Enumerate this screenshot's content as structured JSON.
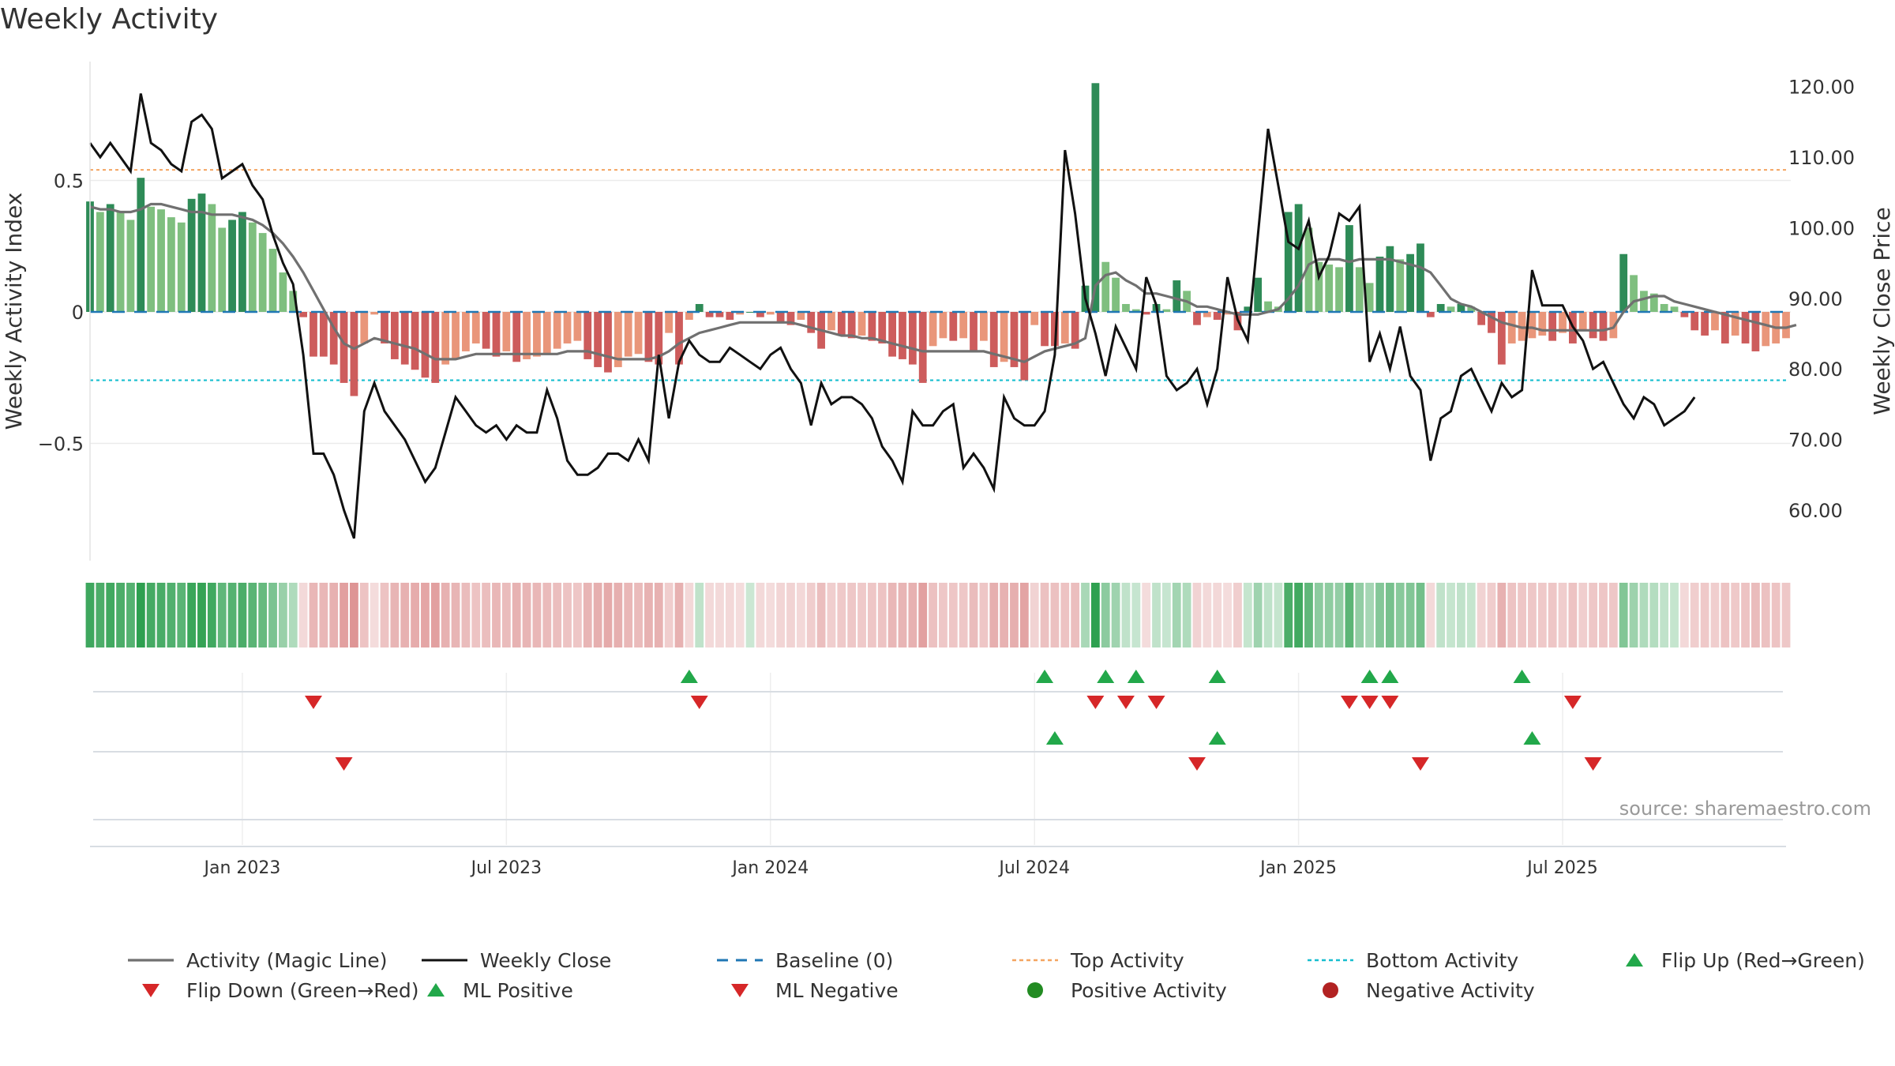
{
  "title": "Weekly Activity",
  "source": "source: sharemaestro.com",
  "colors": {
    "pos_dark": "#2e8b57",
    "pos_light": "#7fbf7f",
    "neg_dark": "#cd5c5c",
    "neg_light": "#e9967a",
    "magic": "#707070",
    "close": "#111111",
    "baseline": "#1f77b4",
    "top": "#f4a460",
    "bottom": "#17becf",
    "flip_up": "#22a84a",
    "flip_down": "#d62728",
    "pos_activity": "#228b22",
    "neg_activity": "#b22222"
  },
  "chart_data": {
    "type": "bar+line",
    "title": "Weekly Activity",
    "ylabel_left": "Weekly Activity Index",
    "ylabel_right": "Weekly Close Price",
    "ylim_left": [
      -0.95,
      0.95
    ],
    "ylim_right": [
      50,
      124
    ],
    "left_ticks": [
      0.5,
      0,
      -0.5
    ],
    "left_tick_labels": [
      "0.5",
      "0",
      "−0.5"
    ],
    "right_ticks": [
      60,
      70,
      80,
      90,
      100,
      110,
      120
    ],
    "right_tick_labels": [
      "60.00",
      "70.00",
      "80.00",
      "90.00",
      "100.00",
      "110.00",
      "120.00"
    ],
    "x_ticks": [
      "Jan 2023",
      "Jul 2023",
      "Jan 2024",
      "Jul 2024",
      "Jan 2025",
      "Jul 2025"
    ],
    "x_tick_weeks": [
      15,
      41,
      67,
      93,
      119,
      145
    ],
    "top_activity": 0.54,
    "bottom_activity": -0.26,
    "baseline": 0,
    "weekly_activity": [
      0.42,
      0.38,
      0.41,
      0.38,
      0.35,
      0.51,
      0.4,
      0.39,
      0.36,
      0.34,
      0.43,
      0.45,
      0.41,
      0.32,
      0.35,
      0.38,
      0.34,
      0.3,
      0.24,
      0.15,
      0.08,
      -0.02,
      -0.17,
      -0.17,
      -0.2,
      -0.27,
      -0.32,
      -0.12,
      -0.01,
      -0.12,
      -0.18,
      -0.2,
      -0.22,
      -0.25,
      -0.27,
      -0.2,
      -0.18,
      -0.15,
      -0.12,
      -0.14,
      -0.17,
      -0.15,
      -0.19,
      -0.18,
      -0.17,
      -0.16,
      -0.14,
      -0.12,
      -0.11,
      -0.18,
      -0.21,
      -0.23,
      -0.21,
      -0.17,
      -0.16,
      -0.19,
      -0.2,
      -0.08,
      -0.2,
      -0.03,
      0.03,
      -0.02,
      -0.02,
      -0.03,
      -0.01,
      0,
      -0.02,
      -0.01,
      -0.04,
      -0.05,
      -0.03,
      -0.08,
      -0.14,
      -0.07,
      -0.09,
      -0.1,
      -0.09,
      -0.11,
      -0.12,
      -0.17,
      -0.18,
      -0.2,
      -0.27,
      -0.13,
      -0.1,
      -0.11,
      -0.1,
      -0.15,
      -0.11,
      -0.21,
      -0.19,
      -0.21,
      -0.26,
      -0.05,
      -0.13,
      -0.13,
      -0.12,
      -0.14,
      0.1,
      0.87,
      0.19,
      0.13,
      0.03,
      0.01,
      -0.01,
      0.03,
      0.01,
      0.12,
      0.08,
      -0.05,
      -0.02,
      -0.03,
      -0.01,
      -0.07,
      0.02,
      0.13,
      0.04,
      0.02,
      0.38,
      0.41,
      0.32,
      0.19,
      0.18,
      0.17,
      0.33,
      0.17,
      0.11,
      0.21,
      0.25,
      0.2,
      0.22,
      0.26,
      -0.02,
      0.03,
      0.02,
      0.03,
      0.02,
      -0.05,
      -0.08,
      -0.2,
      -0.12,
      -0.11,
      -0.1,
      -0.09,
      -0.11,
      -0.08,
      -0.12,
      -0.07,
      -0.1,
      -0.11,
      -0.1,
      0.22,
      0.14,
      0.08,
      0.07,
      0.03,
      0.02,
      -0.02,
      -0.07,
      -0.09,
      -0.07,
      -0.12,
      -0.09,
      -0.12,
      -0.15,
      -0.13,
      -0.12,
      -0.1
    ],
    "magic_line": [
      0.4,
      0.39,
      0.39,
      0.38,
      0.38,
      0.39,
      0.41,
      0.41,
      0.4,
      0.39,
      0.38,
      0.38,
      0.37,
      0.37,
      0.37,
      0.36,
      0.35,
      0.33,
      0.3,
      0.26,
      0.21,
      0.15,
      0.08,
      0.01,
      -0.06,
      -0.12,
      -0.14,
      -0.12,
      -0.1,
      -0.11,
      -0.12,
      -0.13,
      -0.14,
      -0.16,
      -0.18,
      -0.18,
      -0.18,
      -0.17,
      -0.16,
      -0.16,
      -0.16,
      -0.16,
      -0.16,
      -0.16,
      -0.16,
      -0.16,
      -0.16,
      -0.15,
      -0.15,
      -0.15,
      -0.16,
      -0.17,
      -0.18,
      -0.18,
      -0.18,
      -0.18,
      -0.17,
      -0.15,
      -0.12,
      -0.1,
      -0.08,
      -0.07,
      -0.06,
      -0.05,
      -0.04,
      -0.04,
      -0.04,
      -0.04,
      -0.04,
      -0.04,
      -0.05,
      -0.06,
      -0.07,
      -0.08,
      -0.09,
      -0.09,
      -0.1,
      -0.1,
      -0.11,
      -0.12,
      -0.13,
      -0.14,
      -0.15,
      -0.15,
      -0.15,
      -0.15,
      -0.15,
      -0.15,
      -0.15,
      -0.16,
      -0.17,
      -0.18,
      -0.19,
      -0.17,
      -0.15,
      -0.14,
      -0.13,
      -0.12,
      -0.1,
      0.1,
      0.14,
      0.15,
      0.12,
      0.1,
      0.07,
      0.07,
      0.06,
      0.05,
      0.04,
      0.02,
      0.02,
      0.01,
      0.0,
      -0.01,
      -0.01,
      -0.01,
      0.0,
      0.01,
      0.05,
      0.1,
      0.18,
      0.2,
      0.2,
      0.2,
      0.19,
      0.2,
      0.2,
      0.2,
      0.2,
      0.19,
      0.18,
      0.17,
      0.15,
      0.1,
      0.05,
      0.03,
      0.02,
      0.0,
      -0.02,
      -0.04,
      -0.05,
      -0.06,
      -0.06,
      -0.07,
      -0.07,
      -0.07,
      -0.07,
      -0.07,
      -0.07,
      -0.07,
      -0.06,
      0.0,
      0.04,
      0.05,
      0.06,
      0.06,
      0.04,
      0.03,
      0.02,
      0.01,
      0.0,
      -0.01,
      -0.02,
      -0.03,
      -0.04,
      -0.05,
      -0.06,
      -0.06,
      -0.05
    ],
    "weekly_close": [
      112,
      110,
      112,
      110,
      108,
      119,
      112,
      111,
      109,
      108,
      115,
      116,
      114,
      107,
      108,
      109,
      106,
      104,
      99,
      95,
      92,
      82,
      68,
      68,
      65,
      60,
      56,
      74,
      78,
      74,
      72,
      70,
      67,
      64,
      66,
      71,
      76,
      74,
      72,
      71,
      72,
      70,
      72,
      71,
      71,
      77,
      73,
      67,
      65,
      65,
      66,
      68,
      68,
      67,
      70,
      67,
      82,
      73,
      81,
      84,
      82,
      81,
      81,
      83,
      82,
      81,
      80,
      82,
      83,
      80,
      78,
      72,
      78,
      75,
      76,
      76,
      75,
      73,
      69,
      67,
      64,
      74,
      72,
      72,
      74,
      75,
      66,
      68,
      66,
      63,
      76,
      73,
      72,
      72,
      74,
      82,
      111,
      102,
      90,
      85,
      79,
      86,
      83,
      80,
      93,
      89,
      79,
      77,
      78,
      80,
      75,
      80,
      93,
      87,
      84,
      99,
      114,
      106,
      98,
      97,
      101,
      93,
      96,
      102,
      101,
      103,
      81,
      85,
      80,
      86,
      79,
      77,
      67,
      73,
      74,
      79,
      80,
      77,
      74,
      78,
      76,
      77,
      94,
      89,
      89,
      89,
      86,
      84,
      80,
      81,
      78,
      75,
      73,
      76,
      75,
      72,
      73,
      74,
      76
    ],
    "flip_up_weeks": [
      59,
      94,
      100,
      103,
      111,
      126,
      128,
      141
    ],
    "flip_down_weeks": [
      22,
      60,
      99,
      102,
      105,
      124,
      126,
      128,
      146
    ],
    "ml_positive_weeks": [
      95,
      111,
      142
    ],
    "ml_negative_weeks": [
      25,
      109,
      131,
      148
    ],
    "legend": [
      "Activity (Magic Line)",
      "Weekly Close",
      "Baseline (0)",
      "Top Activity",
      "Bottom Activity",
      "Flip Up (Red→Green)",
      "Flip Down (Green→Red)",
      "ML Positive",
      "ML Negative",
      "Positive Activity",
      "Negative Activity"
    ]
  }
}
